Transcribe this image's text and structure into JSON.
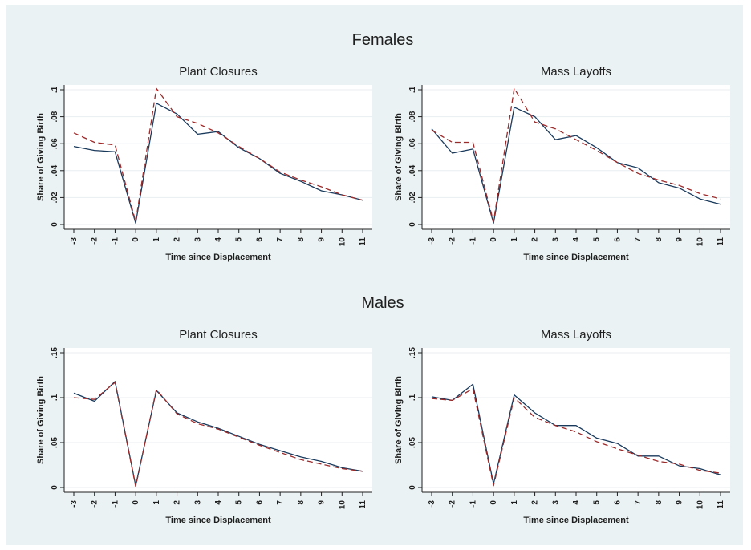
{
  "chart_data": [
    {
      "type": "line",
      "section_title": "Females",
      "title": "Plant Closures",
      "xlabel": "Time since Displacement",
      "ylabel": "Share of Giving Birth",
      "x": [
        -3,
        -2,
        -1,
        0,
        1,
        2,
        3,
        4,
        5,
        6,
        7,
        8,
        9,
        10,
        11
      ],
      "ylim": [
        0,
        0.1
      ],
      "yticks": [
        0,
        0.02,
        0.04,
        0.06,
        0.08,
        0.1
      ],
      "ytick_labels": [
        "0",
        ".02",
        ".04",
        ".06",
        ".08",
        ".1"
      ],
      "grid": true,
      "series": [
        {
          "color": "#1a3a5c",
          "style": "solid",
          "values": [
            0.058,
            0.055,
            0.054,
            0.001,
            0.09,
            0.082,
            0.067,
            0.069,
            0.057,
            0.049,
            0.038,
            0.032,
            0.025,
            0.022,
            0.018
          ]
        },
        {
          "color": "#9b2a2a",
          "style": "dash",
          "values": [
            0.068,
            0.061,
            0.059,
            0.002,
            0.101,
            0.08,
            0.075,
            0.068,
            0.058,
            0.049,
            0.039,
            0.033,
            0.028,
            0.022,
            0.018
          ]
        }
      ]
    },
    {
      "type": "line",
      "title": "Mass Layoffs",
      "xlabel": "Time since Displacement",
      "ylabel": "Share of Giving Birth",
      "x": [
        -3,
        -2,
        -1,
        0,
        1,
        2,
        3,
        4,
        5,
        6,
        7,
        8,
        9,
        10,
        11
      ],
      "ylim": [
        0,
        0.1
      ],
      "yticks": [
        0,
        0.02,
        0.04,
        0.06,
        0.08,
        0.1
      ],
      "ytick_labels": [
        "0",
        ".02",
        ".04",
        ".06",
        ".08",
        ".1"
      ],
      "grid": true,
      "series": [
        {
          "color": "#1a3a5c",
          "style": "solid",
          "values": [
            0.071,
            0.053,
            0.056,
            0.001,
            0.087,
            0.08,
            0.063,
            0.066,
            0.057,
            0.046,
            0.042,
            0.031,
            0.027,
            0.019,
            0.015
          ]
        },
        {
          "color": "#9b2a2a",
          "style": "dash",
          "values": [
            0.07,
            0.061,
            0.061,
            0.002,
            0.101,
            0.076,
            0.071,
            0.063,
            0.055,
            0.046,
            0.038,
            0.033,
            0.029,
            0.023,
            0.019
          ]
        }
      ]
    },
    {
      "type": "line",
      "section_title": "Males",
      "title": "Plant Closures",
      "xlabel": "Time since Displacement",
      "ylabel": "Share of Giving Birth",
      "x": [
        -3,
        -2,
        -1,
        0,
        1,
        2,
        3,
        4,
        5,
        6,
        7,
        8,
        9,
        10,
        11
      ],
      "ylim": [
        0,
        0.15
      ],
      "yticks": [
        0,
        0.05,
        0.1,
        0.15
      ],
      "ytick_labels": [
        "0",
        ".05",
        ".1",
        ".15"
      ],
      "grid": true,
      "series": [
        {
          "color": "#1a3a5c",
          "style": "solid",
          "values": [
            0.105,
            0.096,
            0.118,
            0.002,
            0.108,
            0.083,
            0.073,
            0.066,
            0.057,
            0.048,
            0.041,
            0.034,
            0.029,
            0.022,
            0.018
          ]
        },
        {
          "color": "#9b2a2a",
          "style": "dash",
          "values": [
            0.1,
            0.098,
            0.117,
            0.001,
            0.109,
            0.082,
            0.071,
            0.065,
            0.056,
            0.047,
            0.039,
            0.031,
            0.026,
            0.021,
            0.018
          ]
        }
      ]
    },
    {
      "type": "line",
      "title": "Mass Layoffs",
      "xlabel": "Time since Displacement",
      "ylabel": "Share of Giving Birth",
      "x": [
        -3,
        -2,
        -1,
        0,
        1,
        2,
        3,
        4,
        5,
        6,
        7,
        8,
        9,
        10,
        11
      ],
      "ylim": [
        0,
        0.15
      ],
      "yticks": [
        0,
        0.05,
        0.1,
        0.15
      ],
      "ytick_labels": [
        "0",
        ".05",
        ".1",
        ".15"
      ],
      "grid": true,
      "series": [
        {
          "color": "#1a3a5c",
          "style": "solid",
          "values": [
            0.101,
            0.097,
            0.115,
            0.004,
            0.103,
            0.083,
            0.069,
            0.069,
            0.055,
            0.049,
            0.035,
            0.035,
            0.024,
            0.021,
            0.014
          ]
        },
        {
          "color": "#9b2a2a",
          "style": "dash",
          "values": [
            0.099,
            0.097,
            0.11,
            0.002,
            0.1,
            0.078,
            0.069,
            0.062,
            0.051,
            0.043,
            0.036,
            0.029,
            0.026,
            0.019,
            0.016
          ]
        }
      ]
    }
  ]
}
